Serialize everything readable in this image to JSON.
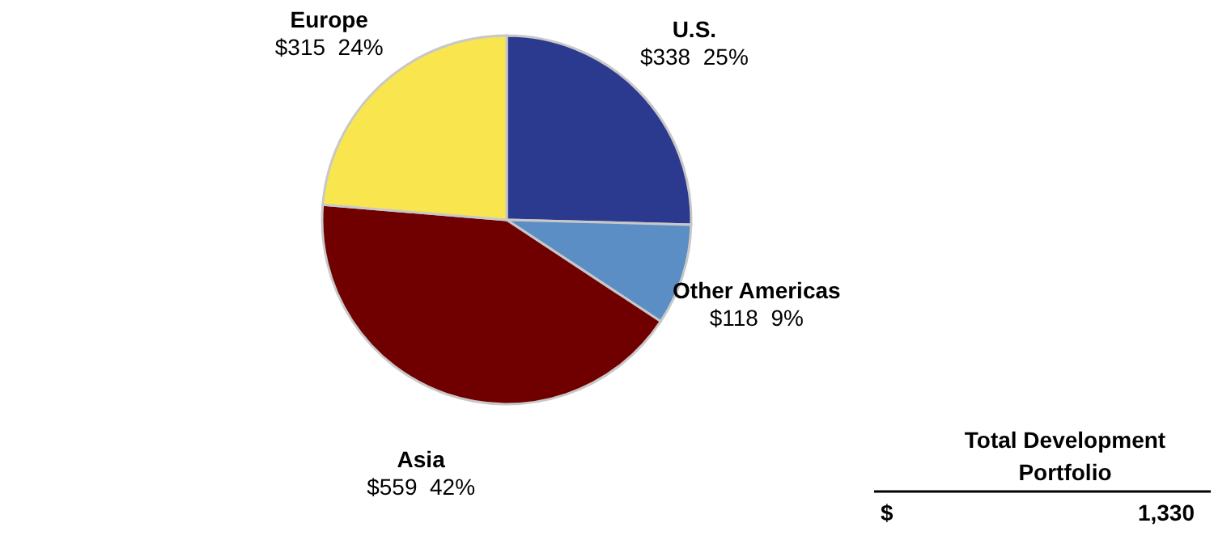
{
  "chart_data": {
    "type": "pie",
    "categories": [
      "U.S.",
      "Other Americas",
      "Asia",
      "Europe"
    ],
    "values": [
      338,
      118,
      559,
      315
    ],
    "colors": [
      "#2b3a8f",
      "#5b8ec4",
      "#700000",
      "#f9e54e"
    ],
    "value_labels": [
      "$338  25%",
      "$118  9%",
      "$559  42%",
      "$315  24%"
    ],
    "annotations": [
      "Total Development Portfolio",
      "$",
      "1,330"
    ]
  }
}
